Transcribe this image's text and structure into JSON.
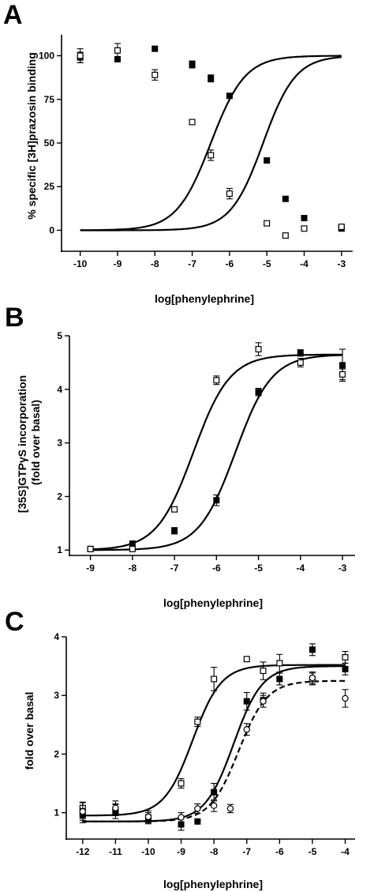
{
  "chart_data": [
    {
      "panel": "A",
      "type": "scatter",
      "xlabel": "log[phenylephrine]",
      "ylabel": "% specific [3H]prazosin binding",
      "xlim": [
        -10.5,
        -2.7
      ],
      "ylim": [
        -12,
        112
      ],
      "xticks": [
        -10,
        -9,
        -8,
        -7,
        -6,
        -5,
        -4,
        -3
      ],
      "yticks": [
        0,
        25,
        50,
        75,
        100
      ],
      "series": [
        {
          "marker": "filled-square",
          "x": [
            -10,
            -9,
            -8,
            -7,
            -6.5,
            -6,
            -5,
            -4.5,
            -4,
            -3
          ],
          "y": [
            99,
            98,
            104,
            95,
            87,
            77,
            40,
            18,
            7,
            1
          ],
          "err": [
            3,
            1,
            0,
            2,
            2,
            1,
            1,
            1,
            1,
            1
          ],
          "fit": {
            "top": 100,
            "bottom": 0,
            "logEC50": -5.1,
            "hill": 1.0,
            "style": "solid"
          }
        },
        {
          "marker": "open-square",
          "x": [
            -10,
            -9,
            -8,
            -7,
            -6.5,
            -6,
            -5,
            -4.5,
            -4,
            -3
          ],
          "y": [
            100,
            103,
            89,
            62,
            43,
            21,
            4,
            -3,
            1,
            2
          ],
          "err": [
            4,
            4,
            3,
            1,
            3,
            3,
            1,
            1,
            1,
            1
          ],
          "fit": {
            "top": 100,
            "bottom": 0,
            "logEC50": -6.5,
            "hill": 0.95,
            "style": "solid"
          }
        }
      ]
    },
    {
      "panel": "B",
      "type": "scatter",
      "xlabel": "log[phenylephrine]",
      "ylabel": "[35S]GTPγS incorporation (fold over basal)",
      "xlim": [
        -9.5,
        -2.7
      ],
      "ylim": [
        0.9,
        5.0
      ],
      "xticks": [
        -9,
        -8,
        -7,
        -6,
        -5,
        -4,
        -3
      ],
      "yticks": [
        1,
        2,
        3,
        4,
        5
      ],
      "series": [
        {
          "marker": "filled-square",
          "x": [
            -9,
            -8,
            -7,
            -6,
            -5,
            -4,
            -3
          ],
          "y": [
            1.02,
            1.12,
            1.36,
            1.93,
            3.95,
            4.68,
            4.45
          ],
          "err": [
            0.02,
            0.03,
            0.06,
            0.1,
            0.07,
            0.06,
            0.3
          ],
          "fit": {
            "top": 4.65,
            "bottom": 1.0,
            "logEC50": -5.55,
            "hill": 1.0,
            "style": "solid"
          }
        },
        {
          "marker": "open-square",
          "x": [
            -9,
            -8,
            -7,
            -6,
            -5,
            -4,
            -3
          ],
          "y": [
            1.02,
            1.02,
            1.76,
            4.17,
            4.75,
            4.5,
            4.28
          ],
          "err": [
            0.02,
            0.02,
            0.04,
            0.08,
            0.12,
            0.08,
            0.1
          ],
          "fit": {
            "top": 4.65,
            "bottom": 1.0,
            "logEC50": -6.55,
            "hill": 1.0,
            "style": "solid"
          }
        }
      ]
    },
    {
      "panel": "C",
      "type": "scatter",
      "xlabel": "log[phenylephrine]",
      "ylabel": "fold over basal",
      "xlim": [
        -12.5,
        -3.7
      ],
      "ylim": [
        0.55,
        4.0
      ],
      "xticks": [
        -12,
        -11,
        -10,
        -9,
        -8,
        -7,
        -6,
        -5,
        -4
      ],
      "yticks": [
        1,
        2,
        3,
        4
      ],
      "series": [
        {
          "marker": "open-square",
          "x": [
            -12,
            -11,
            -10,
            -9,
            -8.5,
            -8,
            -7,
            -6.5,
            -6,
            -5,
            -4
          ],
          "y": [
            1.08,
            1.05,
            0.92,
            1.5,
            2.55,
            3.28,
            3.62,
            3.42,
            3.55,
            3.28,
            3.65
          ],
          "err": [
            0.1,
            0.1,
            0.08,
            0.08,
            0.08,
            0.2,
            0.0,
            0.15,
            0.15,
            0.1,
            0.1
          ],
          "fit": {
            "top": 3.52,
            "bottom": 0.95,
            "logEC50": -8.65,
            "hill": 1.0,
            "style": "solid"
          }
        },
        {
          "marker": "filled-square",
          "x": [
            -12,
            -11,
            -10,
            -9,
            -8.5,
            -8,
            -7,
            -6.5,
            -6,
            -5,
            -4
          ],
          "y": [
            0.95,
            1.02,
            0.88,
            0.8,
            0.85,
            1.35,
            2.9,
            2.92,
            3.28,
            3.78,
            3.45
          ],
          "err": [
            0.12,
            0.12,
            0.07,
            0.1,
            0.0,
            0.15,
            0.15,
            0.12,
            0.1,
            0.1,
            0.1
          ],
          "fit": {
            "top": 3.5,
            "bottom": 0.85,
            "logEC50": -7.4,
            "hill": 1.0,
            "style": "solid"
          }
        },
        {
          "marker": "open-circle",
          "x": [
            -12,
            -11,
            -10,
            -9,
            -8.5,
            -8,
            -7.5,
            -7,
            -6.5,
            -5,
            -4
          ],
          "y": [
            1.02,
            1.08,
            0.93,
            0.92,
            1.07,
            1.12,
            1.07,
            2.42,
            2.9,
            3.3,
            2.95
          ],
          "err": [
            0.15,
            0.12,
            0.1,
            0.08,
            0.08,
            0.1,
            0.07,
            0.1,
            0.1,
            0.1,
            0.15
          ],
          "fit": {
            "top": 3.25,
            "bottom": 0.85,
            "logEC50": -7.25,
            "hill": 1.0,
            "style": "dashed"
          }
        }
      ]
    }
  ]
}
